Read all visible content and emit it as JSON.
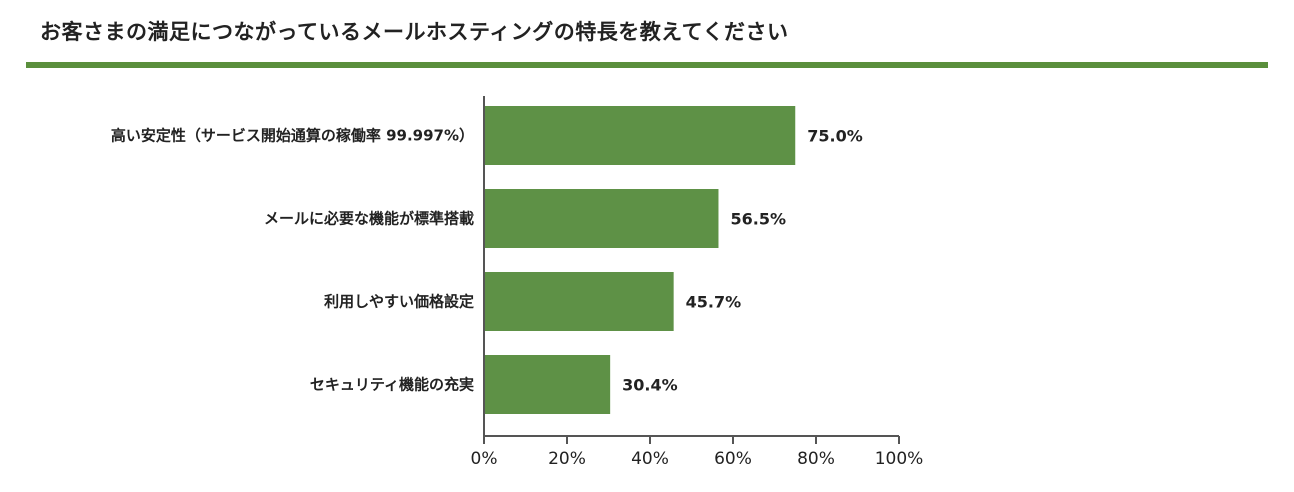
{
  "heading": "お客さまの満足につながっているメールホスティングの特長を教えてください",
  "colors": {
    "bar": "#5e9146",
    "rule": "#5a8f3c",
    "axis": "#555555"
  },
  "chart_data": {
    "type": "bar",
    "orientation": "horizontal",
    "title": "お客さまの満足につながっているメールホスティングの特長を教えてください",
    "xlabel": "",
    "ylabel": "",
    "categories": [
      "高い安定性（サービス開始通算の稼働率 99.997%）",
      "メールに必要な機能が標準搭載",
      "利用しやすい価格設定",
      "セキュリティ機能の充実"
    ],
    "values": [
      75.0,
      56.5,
      45.7,
      30.4
    ],
    "value_labels": [
      "75.0%",
      "56.5%",
      "45.7%",
      "30.4%"
    ],
    "xlim": [
      0,
      100
    ],
    "ticks": [
      0,
      20,
      40,
      60,
      80,
      100
    ],
    "tick_labels": [
      "0%",
      "20%",
      "40%",
      "60%",
      "80%",
      "100%"
    ],
    "grid": false,
    "legend": "none"
  }
}
